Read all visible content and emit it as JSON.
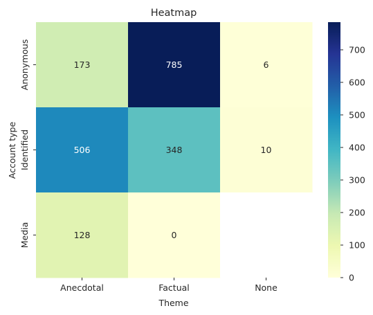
{
  "chart_data": {
    "type": "heatmap",
    "title": "Heatmap",
    "xlabel": "Theme",
    "ylabel": "Account type",
    "x_categories": [
      "Anecdotal",
      "Factual",
      "None"
    ],
    "y_categories": [
      "Anonymous",
      "Identified",
      "Media"
    ],
    "values": [
      [
        173,
        785,
        6
      ],
      [
        506,
        348,
        10
      ],
      [
        128,
        0,
        null
      ]
    ],
    "colormap": "YlGnBu",
    "color_range": [
      0,
      785
    ],
    "colorbar_ticks": [
      0,
      100,
      200,
      300,
      400,
      500,
      600,
      700
    ],
    "annotations": true,
    "missing_cell_color": "#ffffff"
  }
}
